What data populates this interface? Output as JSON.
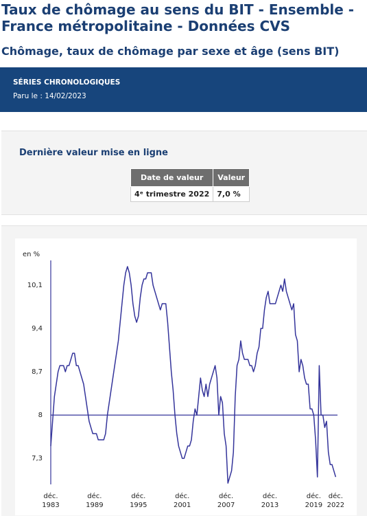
{
  "header": {
    "title": "Taux de chômage au sens du BIT - Ensemble - France métropolitaine - Données CVS",
    "subtitle": "Chômage, taux de chômage par sexe et âge (sens BIT)"
  },
  "banner": {
    "category": "SÉRIES CHRONOLOGIQUES",
    "published": "Paru le : 14/02/2023"
  },
  "latest": {
    "title": "Dernière valeur mise en ligne",
    "table": {
      "columns": [
        "Date de valeur",
        "Valeur"
      ],
      "rows": [
        [
          "4ᵉ trimestre 2022",
          "7,0 %"
        ]
      ]
    }
  },
  "chart_data": {
    "type": "line",
    "y_label": "en %",
    "color": "#33339a",
    "x_axis_at": 8,
    "x": [
      "1983-12",
      "1984-03",
      "1984-06",
      "1984-09",
      "1984-12",
      "1985-03",
      "1985-06",
      "1985-09",
      "1985-12",
      "1986-03",
      "1986-06",
      "1986-09",
      "1986-12",
      "1987-03",
      "1987-06",
      "1987-09",
      "1987-12",
      "1988-03",
      "1988-06",
      "1988-09",
      "1988-12",
      "1989-03",
      "1989-06",
      "1989-09",
      "1989-12",
      "1990-03",
      "1990-06",
      "1990-09",
      "1990-12",
      "1991-03",
      "1991-06",
      "1991-09",
      "1991-12",
      "1992-03",
      "1992-06",
      "1992-09",
      "1992-12",
      "1993-03",
      "1993-06",
      "1993-09",
      "1993-12",
      "1994-03",
      "1994-06",
      "1994-09",
      "1994-12",
      "1995-03",
      "1995-06",
      "1995-09",
      "1995-12",
      "1996-03",
      "1996-06",
      "1996-09",
      "1996-12",
      "1997-03",
      "1997-06",
      "1997-09",
      "1997-12",
      "1998-03",
      "1998-06",
      "1998-09",
      "1998-12",
      "1999-03",
      "1999-06",
      "1999-09",
      "1999-12",
      "2000-03",
      "2000-06",
      "2000-09",
      "2000-12",
      "2001-03",
      "2001-06",
      "2001-09",
      "2001-12",
      "2002-03",
      "2002-06",
      "2002-09",
      "2002-12",
      "2003-03",
      "2003-06",
      "2003-09",
      "2003-12",
      "2004-03",
      "2004-06",
      "2004-09",
      "2004-12",
      "2005-03",
      "2005-06",
      "2005-09",
      "2005-12",
      "2006-03",
      "2006-06",
      "2006-09",
      "2006-12",
      "2007-03",
      "2007-06",
      "2007-09",
      "2007-12",
      "2008-03",
      "2008-06",
      "2008-09",
      "2008-12",
      "2009-03",
      "2009-06",
      "2009-09",
      "2009-12",
      "2010-03",
      "2010-06",
      "2010-09",
      "2010-12",
      "2011-03",
      "2011-06",
      "2011-09",
      "2011-12",
      "2012-03",
      "2012-06",
      "2012-09",
      "2012-12",
      "2013-03",
      "2013-06",
      "2013-09",
      "2013-12",
      "2014-03",
      "2014-06",
      "2014-09",
      "2014-12",
      "2015-03",
      "2015-06",
      "2015-09",
      "2015-12",
      "2016-03",
      "2016-06",
      "2016-09",
      "2016-12",
      "2017-03",
      "2017-06",
      "2017-09",
      "2017-12",
      "2018-03",
      "2018-06",
      "2018-09",
      "2018-12",
      "2019-03",
      "2019-06",
      "2019-09",
      "2019-12",
      "2020-03",
      "2020-06",
      "2020-09",
      "2020-12",
      "2021-03",
      "2021-06",
      "2021-09",
      "2021-12",
      "2022-03",
      "2022-06",
      "2022-09",
      "2022-12"
    ],
    "values": [
      7.5,
      7.9,
      8.3,
      8.5,
      8.7,
      8.8,
      8.8,
      8.8,
      8.7,
      8.8,
      8.8,
      8.9,
      9.0,
      9.0,
      8.8,
      8.8,
      8.7,
      8.6,
      8.5,
      8.3,
      8.1,
      7.9,
      7.8,
      7.7,
      7.7,
      7.7,
      7.6,
      7.6,
      7.6,
      7.6,
      7.7,
      8.0,
      8.2,
      8.4,
      8.6,
      8.8,
      9.0,
      9.2,
      9.5,
      9.8,
      10.1,
      10.3,
      10.4,
      10.3,
      10.1,
      9.8,
      9.6,
      9.5,
      9.6,
      9.9,
      10.1,
      10.2,
      10.2,
      10.3,
      10.3,
      10.3,
      10.1,
      10.0,
      9.9,
      9.8,
      9.7,
      9.8,
      9.8,
      9.8,
      9.5,
      9.1,
      8.7,
      8.4,
      8.0,
      7.7,
      7.5,
      7.4,
      7.3,
      7.3,
      7.4,
      7.5,
      7.5,
      7.6,
      7.9,
      8.1,
      8.0,
      8.3,
      8.6,
      8.4,
      8.3,
      8.5,
      8.3,
      8.5,
      8.6,
      8.7,
      8.8,
      8.6,
      8.0,
      8.3,
      8.2,
      7.7,
      7.5,
      6.9,
      7.0,
      7.1,
      7.4,
      8.3,
      8.8,
      8.9,
      9.2,
      9.0,
      8.9,
      8.9,
      8.9,
      8.8,
      8.8,
      8.7,
      8.8,
      9.0,
      9.1,
      9.4,
      9.4,
      9.7,
      9.9,
      10.0,
      9.8,
      9.8,
      9.8,
      9.8,
      9.9,
      10.0,
      10.1,
      10.0,
      10.2,
      10.0,
      9.9,
      9.8,
      9.7,
      9.8,
      9.3,
      9.2,
      8.7,
      8.9,
      8.8,
      8.6,
      8.5,
      8.5,
      8.1,
      8.1,
      8.0,
      7.6,
      7.0,
      8.8,
      8.0,
      8.0,
      7.8,
      7.9,
      7.4,
      7.2,
      7.2,
      7.1,
      7.0
    ],
    "xlim": [
      "1983-12",
      "2023-03"
    ],
    "xticks": [
      {
        "value": "1983-12",
        "label": "déc. 1983"
      },
      {
        "value": "1989-12",
        "label": "déc. 1989"
      },
      {
        "value": "1995-12",
        "label": "déc. 1995"
      },
      {
        "value": "2001-12",
        "label": "déc. 2001"
      },
      {
        "value": "2007-12",
        "label": "déc. 2007"
      },
      {
        "value": "2013-12",
        "label": "déc. 2013"
      },
      {
        "value": "2019-12",
        "label": "déc. 2019"
      },
      {
        "value": "2022-12",
        "label": "déc. 2022"
      }
    ],
    "ylim": [
      6.88,
      10.5
    ],
    "yticks": [
      {
        "value": 7.3,
        "label": "7,3"
      },
      8,
      {
        "value": 8.7,
        "label": "8,7"
      },
      {
        "value": 9.4,
        "label": "9,4"
      },
      {
        "value": 10.1,
        "label": "10,1"
      }
    ]
  }
}
